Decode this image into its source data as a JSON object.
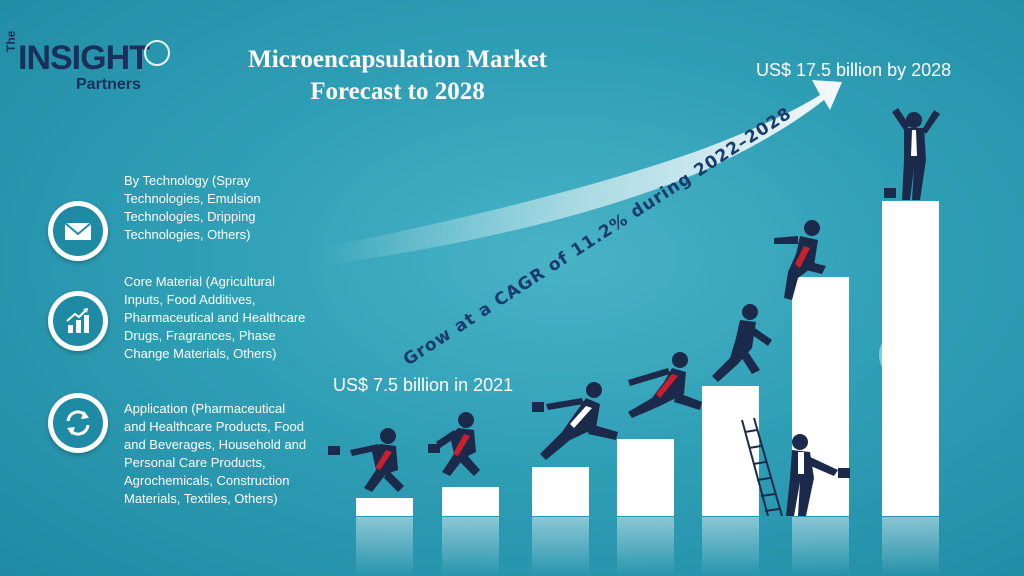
{
  "logo": {
    "the": "The",
    "insight": "INSIGHT",
    "partners": "Partners"
  },
  "title_line1": "Microencapsulation Market",
  "title_line2": "Forecast to 2028",
  "target_label": "US$ 17.5 billion by 2028",
  "base_label": "US$ 7.5 billion in 2021",
  "cagr_text": "Grow at a CAGR of 11.2% during 2022–2028",
  "segments": [
    {
      "icon": "envelope-icon",
      "text": "By Technology (Spray Technologies, Emulsion Technologies, Dripping Technologies, Others)"
    },
    {
      "icon": "growth-chart-icon",
      "text": "Core Material (Agricultural Inputs, Food Additives, Pharmaceutical and Healthcare Drugs, Fragrances, Phase Change Materials, Others)"
    },
    {
      "icon": "exchange-arrows-icon",
      "text": "Application (Pharmaceutical and Healthcare Products, Food and Beverages, Household and Personal Care Products, Agrochemicals, Construction Materials, Textiles, Others)"
    }
  ],
  "colors": {
    "background": "#2f9fb6",
    "figure": "#1b2a4a",
    "tie": "#c8202e",
    "bars": "#ffffff"
  }
}
